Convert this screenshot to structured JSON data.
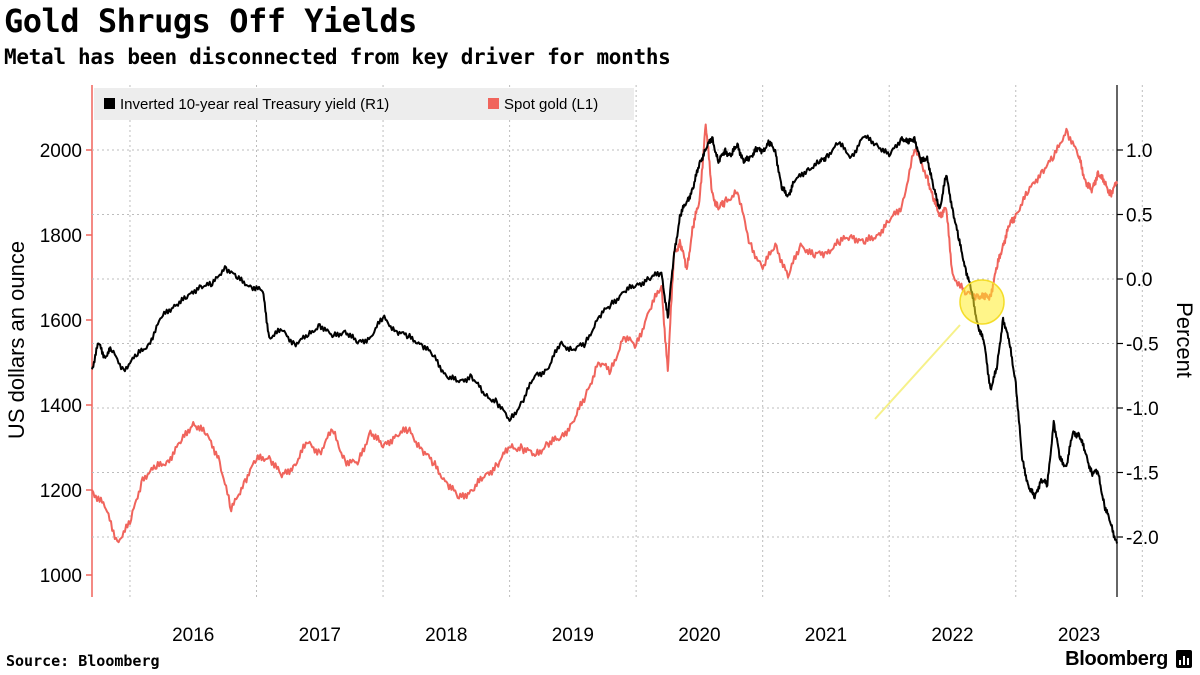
{
  "title": "Gold Shrugs Off Yields",
  "subtitle": "Metal has been disconnected from key driver for months",
  "source": "Source: Bloomberg",
  "brand": "Bloomberg",
  "chart_data": {
    "type": "line",
    "title": "Gold Shrugs Off Yields",
    "subtitle": "Metal has been disconnected from key driver for months",
    "xlabel": "",
    "ylabel_left": "US dollars an ounce",
    "ylabel_right": "Percent",
    "x_ticks": [
      "2016",
      "2017",
      "2018",
      "2019",
      "2020",
      "2021",
      "2022",
      "2023"
    ],
    "x_range": [
      2015.2,
      2023.3
    ],
    "ylim_left": [
      950,
      2150
    ],
    "ylim_right": [
      -2.45,
      1.5
    ],
    "yticks_left": [
      1000,
      1200,
      1400,
      1600,
      1800,
      2000
    ],
    "yticks_right": [
      -2.0,
      -1.5,
      -1.0,
      -0.5,
      0.0,
      0.5,
      1.0
    ],
    "grid": "dotted",
    "legend_position": "top-left",
    "annotation": "highlight circle on gold near 2022.4",
    "series": [
      {
        "name": "Inverted 10-year real Treasury yield (R1)",
        "axis": "right",
        "color": "#000000",
        "x": [
          2015.2,
          2015.25,
          2015.3,
          2015.35,
          2015.45,
          2015.55,
          2015.65,
          2015.75,
          2015.85,
          2015.95,
          2016.05,
          2016.15,
          2016.25,
          2016.35,
          2016.45,
          2016.55,
          2016.6,
          2016.7,
          2016.8,
          2016.9,
          2017.0,
          2017.1,
          2017.2,
          2017.3,
          2017.4,
          2017.5,
          2017.6,
          2017.7,
          2017.8,
          2017.9,
          2018.0,
          2018.1,
          2018.2,
          2018.3,
          2018.4,
          2018.5,
          2018.6,
          2018.7,
          2018.8,
          2018.9,
          2019.0,
          2019.1,
          2019.2,
          2019.3,
          2019.4,
          2019.5,
          2019.6,
          2019.7,
          2019.75,
          2019.8,
          2019.85,
          2019.9,
          2019.95,
          2020.0,
          2020.05,
          2020.1,
          2020.15,
          2020.2,
          2020.25,
          2020.3,
          2020.35,
          2020.4,
          2020.45,
          2020.5,
          2020.55,
          2020.6,
          2020.65,
          2020.7,
          2020.75,
          2020.85,
          2020.95,
          2021.0,
          2021.1,
          2021.2,
          2021.3,
          2021.4,
          2021.5,
          2021.6,
          2021.65,
          2021.7,
          2021.75,
          2021.8,
          2021.85,
          2021.9,
          2021.95,
          2022.0,
          2022.05,
          2022.1,
          2022.15,
          2022.2,
          2022.25,
          2022.3,
          2022.35,
          2022.4,
          2022.45,
          2022.5,
          2022.55,
          2022.6,
          2022.65,
          2022.7,
          2022.75,
          2022.8,
          2022.85,
          2022.9,
          2022.95,
          2023.0,
          2023.05,
          2023.1,
          2023.15,
          2023.2,
          2023.25,
          2023.3
        ],
        "values": [
          -0.7,
          -0.5,
          -0.6,
          -0.55,
          -0.7,
          -0.6,
          -0.5,
          -0.3,
          -0.2,
          -0.15,
          -0.05,
          -0.05,
          0.1,
          0.0,
          -0.05,
          -0.1,
          -0.45,
          -0.4,
          -0.5,
          -0.45,
          -0.35,
          -0.45,
          -0.4,
          -0.5,
          -0.45,
          -0.3,
          -0.4,
          -0.45,
          -0.5,
          -0.6,
          -0.75,
          -0.8,
          -0.75,
          -0.9,
          -0.95,
          -1.1,
          -0.95,
          -0.75,
          -0.7,
          -0.5,
          -0.55,
          -0.5,
          -0.3,
          -0.2,
          -0.1,
          -0.05,
          0.0,
          0.05,
          -0.3,
          0.2,
          0.5,
          0.6,
          0.7,
          0.9,
          1.0,
          1.1,
          0.9,
          1.0,
          0.95,
          1.05,
          0.9,
          0.95,
          1.0,
          1.0,
          1.05,
          1.0,
          0.7,
          0.65,
          0.75,
          0.85,
          0.9,
          0.95,
          1.05,
          0.95,
          1.1,
          1.05,
          0.95,
          1.1,
          1.05,
          1.1,
          0.9,
          0.95,
          0.7,
          0.55,
          0.8,
          0.55,
          0.3,
          0.1,
          -0.1,
          -0.35,
          -0.5,
          -0.85,
          -0.7,
          -0.3,
          -0.5,
          -0.8,
          -1.4,
          -1.6,
          -1.7,
          -1.55,
          -1.6,
          -1.1,
          -1.4,
          -1.45,
          -1.2,
          -1.2,
          -1.35,
          -1.5,
          -1.5,
          -1.75,
          -1.9,
          -2.05
        ]
      },
      {
        "name": "Spot gold (L1)",
        "axis": "left",
        "color": "#f0645c",
        "x": [
          2015.2,
          2015.3,
          2015.4,
          2015.5,
          2015.6,
          2015.7,
          2015.8,
          2015.9,
          2016.0,
          2016.1,
          2016.2,
          2016.3,
          2016.4,
          2016.5,
          2016.6,
          2016.7,
          2016.8,
          2016.9,
          2017.0,
          2017.1,
          2017.2,
          2017.3,
          2017.4,
          2017.5,
          2017.6,
          2017.7,
          2017.8,
          2017.9,
          2018.0,
          2018.1,
          2018.2,
          2018.3,
          2018.4,
          2018.5,
          2018.6,
          2018.7,
          2018.8,
          2018.9,
          2019.0,
          2019.1,
          2019.2,
          2019.3,
          2019.4,
          2019.5,
          2019.6,
          2019.7,
          2019.75,
          2019.8,
          2019.85,
          2019.9,
          2019.95,
          2020.0,
          2020.05,
          2020.1,
          2020.15,
          2020.2,
          2020.3,
          2020.4,
          2020.5,
          2020.6,
          2020.7,
          2020.8,
          2020.9,
          2021.0,
          2021.1,
          2021.2,
          2021.3,
          2021.4,
          2021.5,
          2021.6,
          2021.7,
          2021.8,
          2021.85,
          2021.9,
          2021.95,
          2022.0,
          2022.1,
          2022.2,
          2022.25,
          2022.3,
          2022.35,
          2022.4,
          2022.45,
          2022.5,
          2022.6,
          2022.7,
          2022.8,
          2022.9,
          2023.0,
          2023.05,
          2023.1,
          2023.15,
          2023.2,
          2023.25,
          2023.3
        ],
        "values": [
          1200,
          1160,
          1080,
          1120,
          1230,
          1250,
          1270,
          1310,
          1360,
          1330,
          1280,
          1150,
          1220,
          1270,
          1280,
          1230,
          1260,
          1310,
          1290,
          1340,
          1270,
          1260,
          1340,
          1300,
          1330,
          1340,
          1300,
          1260,
          1220,
          1180,
          1200,
          1230,
          1260,
          1300,
          1300,
          1280,
          1310,
          1320,
          1360,
          1420,
          1500,
          1480,
          1560,
          1540,
          1620,
          1680,
          1480,
          1760,
          1780,
          1720,
          1820,
          1880,
          2060,
          1900,
          1860,
          1880,
          1900,
          1780,
          1720,
          1780,
          1700,
          1780,
          1750,
          1760,
          1780,
          1800,
          1780,
          1800,
          1830,
          1870,
          2000,
          1940,
          1880,
          1850,
          1860,
          1710,
          1660,
          1660,
          1650,
          1660,
          1720,
          1780,
          1820,
          1850,
          1900,
          1950,
          1980,
          2050,
          1980,
          1930,
          1900,
          1950,
          1920,
          1900,
          1920
        ]
      }
    ]
  }
}
